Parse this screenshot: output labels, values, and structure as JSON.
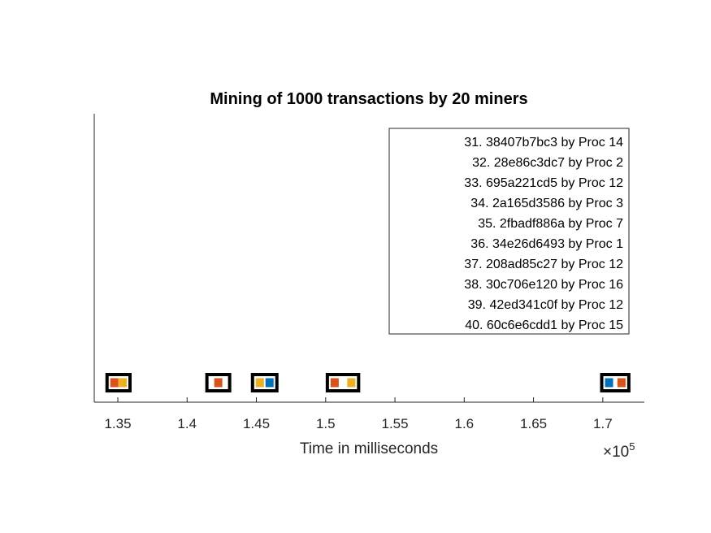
{
  "chart_data": {
    "type": "scatter",
    "title": "Mining of 1000 transactions by 20 miners",
    "xlabel": "Time in milliseconds",
    "ylabel": "",
    "x_exponent_base": "×10",
    "x_exponent_power": "5",
    "xlim": [
      1.333,
      1.73
    ],
    "x_ticks": [
      1.35,
      1.4,
      1.45,
      1.5,
      1.55,
      1.6,
      1.65,
      1.7
    ],
    "x_tick_labels": [
      "1.35",
      "1.4",
      "1.45",
      "1.5",
      "1.55",
      "1.6",
      "1.65",
      "1.7"
    ],
    "grid": false,
    "legend_position": "top-right",
    "legend": [
      "31. 38407b7bc3 by Proc 14",
      "32. 28e86c3dc7 by Proc 2",
      "33. 695a221cd5 by Proc 12",
      "34. 2a165d3586 by Proc 3",
      "35. 2fbadf886a by Proc 7",
      "36. 34e26d6493 by Proc 1",
      "37. 208ad85c27 by Proc 12",
      "38. 30c706e120 by Proc 16",
      "39. 42ed341c0f by Proc 12",
      "40. 60c6e6cdd1 by Proc 15"
    ],
    "blocks": [
      {
        "x": 1.3515,
        "inner": [
          {
            "x": 1.3475,
            "color": "#D95319"
          },
          {
            "x": 1.3535,
            "color": "#EDB120"
          }
        ]
      },
      {
        "x": 1.4225,
        "inner": [
          {
            "x": 1.4225,
            "color": "#D95319"
          }
        ]
      },
      {
        "x": 1.4575,
        "inner": [
          {
            "x": 1.4525,
            "color": "#EDB120"
          },
          {
            "x": 1.4595,
            "color": "#0072BD"
          }
        ]
      },
      {
        "x": 1.5115,
        "inner": [
          {
            "x": 1.5065,
            "color": "#D95319"
          },
          {
            "x": 1.5185,
            "color": "#EDB120"
          }
        ]
      },
      {
        "x": 1.7085,
        "inner": [
          {
            "x": 1.7045,
            "color": "#0072BD"
          },
          {
            "x": 1.7135,
            "color": "#D95319"
          }
        ]
      }
    ],
    "colors": {
      "blue": "#0072BD",
      "orange": "#D95319",
      "yellow": "#EDB120"
    }
  }
}
